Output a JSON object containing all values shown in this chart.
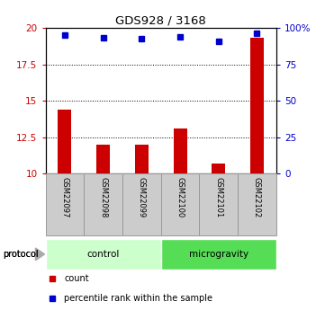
{
  "title": "GDS928 / 3168",
  "samples": [
    "GSM22097",
    "GSM22098",
    "GSM22099",
    "GSM22100",
    "GSM22101",
    "GSM22102"
  ],
  "red_values": [
    14.4,
    12.0,
    12.0,
    13.1,
    10.7,
    19.3
  ],
  "blue_pct": [
    95,
    93,
    92.5,
    94,
    91,
    96.5
  ],
  "ylim_left": [
    10,
    20
  ],
  "ylim_right": [
    0,
    100
  ],
  "yticks_left": [
    10,
    12.5,
    15,
    17.5,
    20
  ],
  "yticks_right": [
    0,
    25,
    50,
    75,
    100
  ],
  "ytick_labels_right": [
    "0",
    "25",
    "50",
    "75",
    "100%"
  ],
  "red_color": "#CC0000",
  "blue_color": "#0000CC",
  "bar_width": 0.35,
  "groups": [
    {
      "label": "control",
      "indices": [
        0,
        1,
        2
      ],
      "color": "#ccffcc"
    },
    {
      "label": "microgravity",
      "indices": [
        3,
        4,
        5
      ],
      "color": "#55dd55"
    }
  ],
  "protocol_label": "protocol",
  "legend_items": [
    {
      "color": "#CC0000",
      "marker": "s",
      "label": "count"
    },
    {
      "color": "#0000CC",
      "marker": "s",
      "label": "percentile rank within the sample"
    }
  ],
  "tick_label_color_left": "#CC0000",
  "tick_label_color_right": "#0000CC",
  "sample_box_color": "#cccccc",
  "sample_box_edge_color": "#999999"
}
